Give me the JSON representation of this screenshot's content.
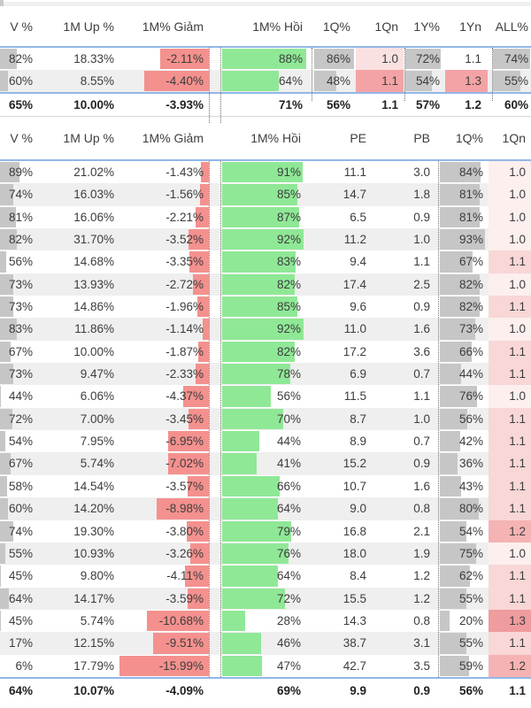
{
  "summary_table": {
    "headers": [
      "V %",
      "1M Up %",
      "1M% Giảm",
      "1M% Hồi",
      "1Q%",
      "1Qn",
      "1Y%",
      "1Yn",
      "ALL%"
    ],
    "rows": [
      [
        "82%",
        "18.33%",
        "-2.11%",
        "88%",
        "86%",
        "1.0",
        "72%",
        "1.1",
        "74%"
      ],
      [
        "60%",
        "8.55%",
        "-4.40%",
        "64%",
        "48%",
        "1.1",
        "54%",
        "1.3",
        "55%"
      ]
    ],
    "totals": [
      "65%",
      "10.00%",
      "-3.93%",
      "71%",
      "56%",
      "1.1",
      "57%",
      "1.2",
      "60%"
    ]
  },
  "detail_table": {
    "headers": [
      "V %",
      "1M Up %",
      "1M% Giảm",
      "1M% Hồi",
      "PE",
      "PB",
      "1Q%",
      "1Qn"
    ],
    "rows": [
      [
        "89%",
        "21.02%",
        "-1.43%",
        "91%",
        "11.1",
        "3.0",
        "84%",
        "1.0"
      ],
      [
        "74%",
        "16.03%",
        "-1.56%",
        "85%",
        "14.7",
        "1.8",
        "81%",
        "1.0"
      ],
      [
        "81%",
        "16.06%",
        "-2.21%",
        "87%",
        "6.5",
        "0.9",
        "81%",
        "1.0"
      ],
      [
        "82%",
        "31.70%",
        "-3.52%",
        "92%",
        "11.2",
        "1.0",
        "93%",
        "1.0"
      ],
      [
        "56%",
        "14.68%",
        "-3.35%",
        "83%",
        "9.4",
        "1.1",
        "67%",
        "1.1"
      ],
      [
        "73%",
        "13.93%",
        "-2.72%",
        "82%",
        "17.4",
        "2.5",
        "82%",
        "1.0"
      ],
      [
        "73%",
        "14.86%",
        "-1.96%",
        "85%",
        "9.6",
        "0.9",
        "82%",
        "1.1"
      ],
      [
        "83%",
        "11.86%",
        "-1.14%",
        "92%",
        "11.0",
        "1.6",
        "73%",
        "1.0"
      ],
      [
        "67%",
        "10.00%",
        "-1.87%",
        "82%",
        "17.2",
        "3.6",
        "66%",
        "1.1"
      ],
      [
        "73%",
        "9.47%",
        "-2.33%",
        "78%",
        "6.9",
        "0.7",
        "44%",
        "1.1"
      ],
      [
        "44%",
        "6.06%",
        "-4.37%",
        "56%",
        "11.5",
        "1.1",
        "76%",
        "1.0"
      ],
      [
        "72%",
        "7.00%",
        "-3.45%",
        "70%",
        "8.7",
        "1.0",
        "56%",
        "1.1"
      ],
      [
        "54%",
        "7.95%",
        "-6.95%",
        "44%",
        "8.9",
        "0.7",
        "42%",
        "1.1"
      ],
      [
        "67%",
        "5.74%",
        "-7.02%",
        "41%",
        "15.2",
        "0.9",
        "36%",
        "1.1"
      ],
      [
        "58%",
        "14.54%",
        "-3.57%",
        "66%",
        "10.7",
        "1.6",
        "43%",
        "1.1"
      ],
      [
        "60%",
        "14.20%",
        "-8.98%",
        "64%",
        "9.0",
        "0.8",
        "80%",
        "1.1"
      ],
      [
        "74%",
        "19.30%",
        "-3.80%",
        "79%",
        "16.8",
        "2.1",
        "54%",
        "1.2"
      ],
      [
        "55%",
        "10.93%",
        "-3.26%",
        "76%",
        "18.0",
        "1.9",
        "75%",
        "1.0"
      ],
      [
        "45%",
        "9.80%",
        "-4.11%",
        "64%",
        "8.4",
        "1.2",
        "62%",
        "1.1"
      ],
      [
        "64%",
        "14.17%",
        "-3.59%",
        "72%",
        "15.5",
        "1.2",
        "55%",
        "1.1"
      ],
      [
        "45%",
        "5.74%",
        "-10.68%",
        "28%",
        "14.3",
        "0.8",
        "20%",
        "1.3"
      ],
      [
        "17%",
        "12.15%",
        "-9.51%",
        "46%",
        "38.7",
        "3.1",
        "55%",
        "1.1"
      ],
      [
        "6%",
        "17.79%",
        "-15.99%",
        "47%",
        "42.7",
        "3.5",
        "59%",
        "1.2"
      ]
    ],
    "totals": [
      "64%",
      "10.07%",
      "-4.09%",
      "69%",
      "9.9",
      "0.9",
      "56%",
      "1.1"
    ]
  },
  "colors": {
    "green_bar": "#8FE896",
    "red_bar": "#F4918E",
    "gray_bar": "#C6C6C6",
    "blue_line": "#92B7E7",
    "alt_row": "#EFEFEF",
    "pink_strong": "#F3A3A5",
    "pink_light": "#FAE1E1",
    "pink_scale_detail": {
      "1.0": "#FCEFEE",
      "1.1": "#F8D7D6",
      "1.2": "#F5B3B3",
      "1.3": "#F09B9D"
    }
  }
}
